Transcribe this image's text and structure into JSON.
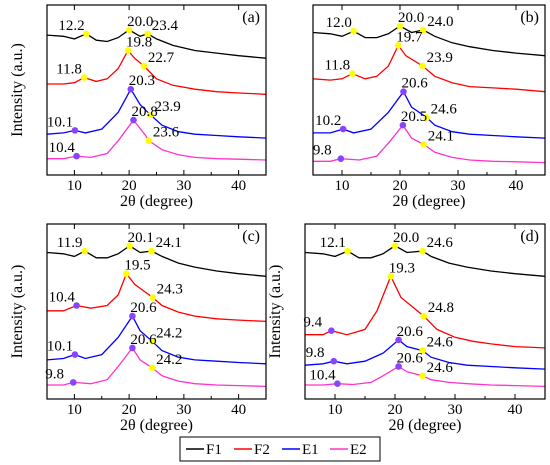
{
  "chart_data": [
    {
      "type": "line",
      "panel": "(a)",
      "xlabel": "2θ (degree)",
      "ylabel": "Intensity (a.u.)",
      "xlim": [
        5,
        45
      ],
      "xticks": [
        "10",
        "20",
        "30",
        "40"
      ],
      "series": [
        {
          "name": "F1",
          "color": "#000000",
          "offset": 4.2,
          "x": [
            5,
            8,
            10,
            12.2,
            14,
            16,
            18,
            20,
            22,
            23.4,
            25,
            28,
            32,
            36,
            40,
            45
          ],
          "y": [
            1.0,
            0.95,
            0.85,
            1.05,
            0.8,
            0.75,
            0.9,
            1.2,
            0.95,
            1.05,
            0.85,
            0.6,
            0.4,
            0.3,
            0.2,
            0.1
          ]
        },
        {
          "name": "F2",
          "color": "#ff0000",
          "offset": 2.8,
          "x": [
            5,
            8,
            10,
            11.8,
            14,
            16,
            18,
            19.8,
            21,
            22.7,
            25,
            28,
            32,
            36,
            40,
            45
          ],
          "y": [
            0.5,
            0.5,
            0.55,
            0.75,
            0.6,
            0.7,
            1.1,
            1.8,
            1.5,
            1.2,
            0.7,
            0.45,
            0.3,
            0.2,
            0.15,
            0.1
          ]
        },
        {
          "name": "E1",
          "color": "#0000ff",
          "offset": 1.1,
          "x": [
            5,
            8,
            10.1,
            12,
            15,
            18,
            20.3,
            22,
            23.9,
            26,
            29,
            32,
            36,
            40,
            45
          ],
          "y": [
            0.25,
            0.3,
            0.4,
            0.3,
            0.45,
            1.1,
            2.0,
            1.4,
            1.0,
            0.6,
            0.35,
            0.25,
            0.2,
            0.15,
            0.1
          ]
        },
        {
          "name": "E2",
          "color": "#ff33cc",
          "offset": 0.3,
          "x": [
            5,
            8,
            10.4,
            13,
            16,
            18,
            20.8,
            23,
            23.6,
            26,
            29,
            32,
            36,
            40,
            45
          ],
          "y": [
            0.1,
            0.1,
            0.2,
            0.15,
            0.3,
            0.8,
            1.6,
            1.0,
            0.8,
            0.45,
            0.25,
            0.15,
            0.1,
            0.08,
            0.05
          ]
        }
      ],
      "annotations": [
        {
          "text": "12.2",
          "x": 12.2,
          "series": 0,
          "dot": "#ffff00"
        },
        {
          "text": "20.0",
          "x": 20.0,
          "series": 0,
          "dot": "#ffff00"
        },
        {
          "text": "23.4",
          "x": 23.4,
          "series": 0,
          "dot": "#ffff00"
        },
        {
          "text": "11.8",
          "x": 11.8,
          "series": 1,
          "dot": "#ffff00"
        },
        {
          "text": "19.8",
          "x": 19.8,
          "series": 1,
          "dot": "#ffff00"
        },
        {
          "text": "22.7",
          "x": 22.7,
          "series": 1,
          "dot": "#ffff00"
        },
        {
          "text": "10.1",
          "x": 10.1,
          "series": 2,
          "dot": "#8844ff"
        },
        {
          "text": "20.3",
          "x": 20.3,
          "series": 2,
          "dot": "#8844ff"
        },
        {
          "text": "23.9",
          "x": 23.9,
          "series": 2,
          "dot": "#ffff00"
        },
        {
          "text": "10.4",
          "x": 10.4,
          "series": 3,
          "dot": "#8844ff"
        },
        {
          "text": "20.8",
          "x": 20.8,
          "series": 3,
          "dot": "#8844ff"
        },
        {
          "text": "23.6",
          "x": 23.6,
          "series": 3,
          "dot": "#ffff00"
        }
      ]
    },
    {
      "type": "line",
      "panel": "(b)",
      "xlabel": "2θ (degree)",
      "ylabel": "",
      "xlim": [
        5,
        45
      ],
      "xticks": [
        "10",
        "20",
        "30",
        "40"
      ],
      "series": [
        {
          "name": "F1",
          "color": "#000000",
          "offset": 4.3,
          "x": [
            5,
            8,
            10,
            12.0,
            14,
            16,
            18,
            20.0,
            22,
            24.0,
            26,
            29,
            32,
            36,
            40,
            45
          ],
          "y": [
            1.0,
            0.95,
            0.85,
            1.05,
            0.8,
            0.8,
            0.95,
            1.25,
            1.0,
            1.1,
            0.85,
            0.6,
            0.45,
            0.3,
            0.2,
            0.1
          ]
        },
        {
          "name": "F2",
          "color": "#ff0000",
          "offset": 2.9,
          "x": [
            5,
            8,
            10,
            11.8,
            14,
            16,
            18,
            19.7,
            21,
            23.9,
            26,
            29,
            32,
            36,
            40,
            45
          ],
          "y": [
            0.6,
            0.55,
            0.6,
            0.8,
            0.6,
            0.7,
            1.1,
            1.9,
            1.5,
            1.1,
            0.7,
            0.45,
            0.3,
            0.25,
            0.2,
            0.1
          ]
        },
        {
          "name": "E1",
          "color": "#0000ff",
          "offset": 1.1,
          "x": [
            5,
            8,
            10.2,
            12,
            15,
            18,
            20.6,
            22,
            24.6,
            26,
            29,
            32,
            36,
            40,
            45
          ],
          "y": [
            0.3,
            0.3,
            0.45,
            0.3,
            0.45,
            1.1,
            1.9,
            1.3,
            0.9,
            0.6,
            0.35,
            0.25,
            0.2,
            0.15,
            0.1
          ]
        },
        {
          "name": "E2",
          "color": "#ff33cc",
          "offset": 0.2,
          "x": [
            5,
            8,
            9.8,
            13,
            16,
            18,
            20.5,
            22,
            24.1,
            26,
            29,
            32,
            36,
            40,
            45
          ],
          "y": [
            0.1,
            0.1,
            0.2,
            0.15,
            0.3,
            0.8,
            1.5,
            1.0,
            0.75,
            0.45,
            0.25,
            0.15,
            0.1,
            0.08,
            0.05
          ]
        }
      ],
      "annotations": [
        {
          "text": "12.0",
          "x": 12.0,
          "series": 0,
          "dot": "#ffff00"
        },
        {
          "text": "20.0",
          "x": 20.0,
          "series": 0,
          "dot": "#ffff00"
        },
        {
          "text": "24.0",
          "x": 24.0,
          "series": 0,
          "dot": "#ffff00"
        },
        {
          "text": "11.8",
          "x": 11.8,
          "series": 1,
          "dot": "#ffff00"
        },
        {
          "text": "19.7",
          "x": 19.7,
          "series": 1,
          "dot": "#ffff00"
        },
        {
          "text": "23.9",
          "x": 23.9,
          "series": 1,
          "dot": "#ffff00"
        },
        {
          "text": "10.2",
          "x": 10.2,
          "series": 2,
          "dot": "#8844ff"
        },
        {
          "text": "20.6",
          "x": 20.6,
          "series": 2,
          "dot": "#8844ff"
        },
        {
          "text": "24.6",
          "x": 24.6,
          "series": 2,
          "dot": "#ffff00"
        },
        {
          "text": "9.8",
          "x": 9.8,
          "series": 3,
          "dot": "#8844ff"
        },
        {
          "text": "20.5",
          "x": 20.5,
          "series": 3,
          "dot": "#8844ff"
        },
        {
          "text": "24.1",
          "x": 24.1,
          "series": 3,
          "dot": "#ffff00"
        }
      ]
    },
    {
      "type": "line",
      "panel": "(c)",
      "xlabel": "2θ (degree)",
      "ylabel": "Intensity (a.u.)",
      "xlim": [
        5,
        45
      ],
      "xticks": [
        "10",
        "20",
        "30",
        "40"
      ],
      "series": [
        {
          "name": "F1",
          "color": "#000000",
          "offset": 4.3,
          "x": [
            5,
            8,
            10,
            11.9,
            14,
            16,
            18,
            20.1,
            22,
            24.1,
            26,
            29,
            32,
            36,
            40,
            45
          ],
          "y": [
            1.0,
            0.95,
            0.85,
            1.05,
            0.8,
            0.8,
            0.95,
            1.25,
            1.0,
            1.05,
            0.85,
            0.6,
            0.45,
            0.3,
            0.2,
            0.1
          ]
        },
        {
          "name": "F2",
          "color": "#ff0000",
          "offset": 2.6,
          "x": [
            5,
            8,
            10.4,
            13,
            16,
            18,
            19.5,
            21,
            24.3,
            26,
            29,
            32,
            36,
            40,
            45
          ],
          "y": [
            0.5,
            0.5,
            0.7,
            0.6,
            0.7,
            1.1,
            1.9,
            1.5,
            1.0,
            0.7,
            0.45,
            0.3,
            0.2,
            0.15,
            0.1
          ]
        },
        {
          "name": "E1",
          "color": "#0000ff",
          "offset": 1.0,
          "x": [
            5,
            8,
            10.1,
            12,
            15,
            18,
            20.6,
            22,
            24.2,
            26,
            29,
            32,
            36,
            40,
            45
          ],
          "y": [
            0.25,
            0.3,
            0.45,
            0.3,
            0.45,
            1.1,
            1.9,
            1.35,
            0.95,
            0.6,
            0.35,
            0.25,
            0.2,
            0.15,
            0.1
          ]
        },
        {
          "name": "E2",
          "color": "#ff33cc",
          "offset": 0.2,
          "x": [
            5,
            8,
            9.8,
            13,
            16,
            18,
            20.6,
            22,
            24.2,
            26,
            29,
            32,
            36,
            40,
            45
          ],
          "y": [
            0.1,
            0.1,
            0.2,
            0.15,
            0.3,
            0.8,
            1.5,
            1.05,
            0.75,
            0.45,
            0.25,
            0.15,
            0.1,
            0.08,
            0.05
          ]
        }
      ],
      "annotations": [
        {
          "text": "11.9",
          "x": 11.9,
          "series": 0,
          "dot": "#ffff00"
        },
        {
          "text": "20.1",
          "x": 20.1,
          "series": 0,
          "dot": "#ffff00"
        },
        {
          "text": "24.1",
          "x": 24.1,
          "series": 0,
          "dot": "#ffff00"
        },
        {
          "text": "10.4",
          "x": 10.4,
          "series": 1,
          "dot": "#8844ff"
        },
        {
          "text": "19.5",
          "x": 19.5,
          "series": 1,
          "dot": "#ffff00"
        },
        {
          "text": "24.3",
          "x": 24.3,
          "series": 1,
          "dot": "#ffff00"
        },
        {
          "text": "10.1",
          "x": 10.1,
          "series": 2,
          "dot": "#8844ff"
        },
        {
          "text": "20.6",
          "x": 20.6,
          "series": 2,
          "dot": "#8844ff"
        },
        {
          "text": "24.2",
          "x": 24.2,
          "series": 2,
          "dot": "#ffff00"
        },
        {
          "text": "9.8",
          "x": 9.8,
          "series": 3,
          "dot": "#8844ff"
        },
        {
          "text": "20.6",
          "x": 20.6,
          "series": 3,
          "dot": "#8844ff"
        },
        {
          "text": "24.2",
          "x": 24.2,
          "series": 3,
          "dot": "#ffff00"
        }
      ]
    },
    {
      "type": "line",
      "panel": "(d)",
      "xlabel": "2θ (degree)",
      "ylabel": "Intensity (a.u.)",
      "xlim": [
        5,
        45
      ],
      "xticks": [
        "10",
        "20",
        "30",
        "40"
      ],
      "series": [
        {
          "name": "F1",
          "color": "#000000",
          "offset": 4.3,
          "x": [
            5,
            8,
            10,
            12.1,
            14,
            16,
            18,
            20.0,
            22,
            24.6,
            26,
            29,
            32,
            36,
            40,
            45
          ],
          "y": [
            1.0,
            0.95,
            0.85,
            1.05,
            0.8,
            0.8,
            0.95,
            1.25,
            1.0,
            1.05,
            0.85,
            0.6,
            0.45,
            0.3,
            0.2,
            0.1
          ]
        },
        {
          "name": "F2",
          "color": "#ff0000",
          "offset": 1.6,
          "x": [
            5,
            8,
            9.4,
            12,
            15,
            17,
            19.3,
            21,
            24.8,
            27,
            30,
            33,
            36,
            40,
            45
          ],
          "y": [
            0.6,
            0.6,
            0.75,
            0.6,
            0.8,
            1.5,
            2.8,
            2.0,
            1.3,
            0.8,
            0.5,
            0.35,
            0.25,
            0.15,
            0.1
          ]
        },
        {
          "name": "E1",
          "color": "#0000ff",
          "offset": 0.8,
          "x": [
            5,
            8,
            9.8,
            12,
            15,
            18,
            20.6,
            22,
            24.6,
            26,
            29,
            32,
            36,
            40,
            45
          ],
          "y": [
            0.25,
            0.3,
            0.4,
            0.3,
            0.4,
            0.7,
            1.2,
            0.95,
            0.8,
            0.55,
            0.35,
            0.25,
            0.2,
            0.15,
            0.1
          ]
        },
        {
          "name": "E2",
          "color": "#ff33cc",
          "offset": 0.2,
          "x": [
            5,
            8,
            10.4,
            13,
            16,
            18,
            20.6,
            22,
            24.6,
            26,
            29,
            32,
            36,
            40,
            45
          ],
          "y": [
            0.1,
            0.1,
            0.15,
            0.12,
            0.2,
            0.45,
            0.8,
            0.6,
            0.45,
            0.3,
            0.2,
            0.15,
            0.1,
            0.08,
            0.05
          ]
        }
      ],
      "annotations": [
        {
          "text": "12.1",
          "x": 12.1,
          "series": 0,
          "dot": "#ffff00"
        },
        {
          "text": "20.0",
          "x": 20.0,
          "series": 0,
          "dot": "#ffff00"
        },
        {
          "text": "24.6",
          "x": 24.6,
          "series": 0,
          "dot": "#ffff00"
        },
        {
          "text": "9.4",
          "x": 9.4,
          "series": 1,
          "dot": "#8844ff"
        },
        {
          "text": "19.3",
          "x": 19.3,
          "series": 1,
          "dot": "#ffff00"
        },
        {
          "text": "24.8",
          "x": 24.8,
          "series": 1,
          "dot": "#ffff00"
        },
        {
          "text": "9.8",
          "x": 9.8,
          "series": 2,
          "dot": "#8844ff"
        },
        {
          "text": "20.6",
          "x": 20.6,
          "series": 2,
          "dot": "#8844ff"
        },
        {
          "text": "24.6",
          "x": 24.6,
          "series": 2,
          "dot": "#ffff00"
        },
        {
          "text": "10.4",
          "x": 10.4,
          "series": 3,
          "dot": "#8844ff"
        },
        {
          "text": "20.6",
          "x": 20.6,
          "series": 3,
          "dot": "#8844ff"
        },
        {
          "text": "24.6",
          "x": 24.6,
          "series": 3,
          "dot": "#ffff00"
        }
      ]
    }
  ],
  "legend": {
    "entries": [
      {
        "label": "F1",
        "color": "#000000"
      },
      {
        "label": "F2",
        "color": "#ff0000"
      },
      {
        "label": "E1",
        "color": "#0000ff"
      },
      {
        "label": "E2",
        "color": "#ff33cc"
      }
    ]
  }
}
